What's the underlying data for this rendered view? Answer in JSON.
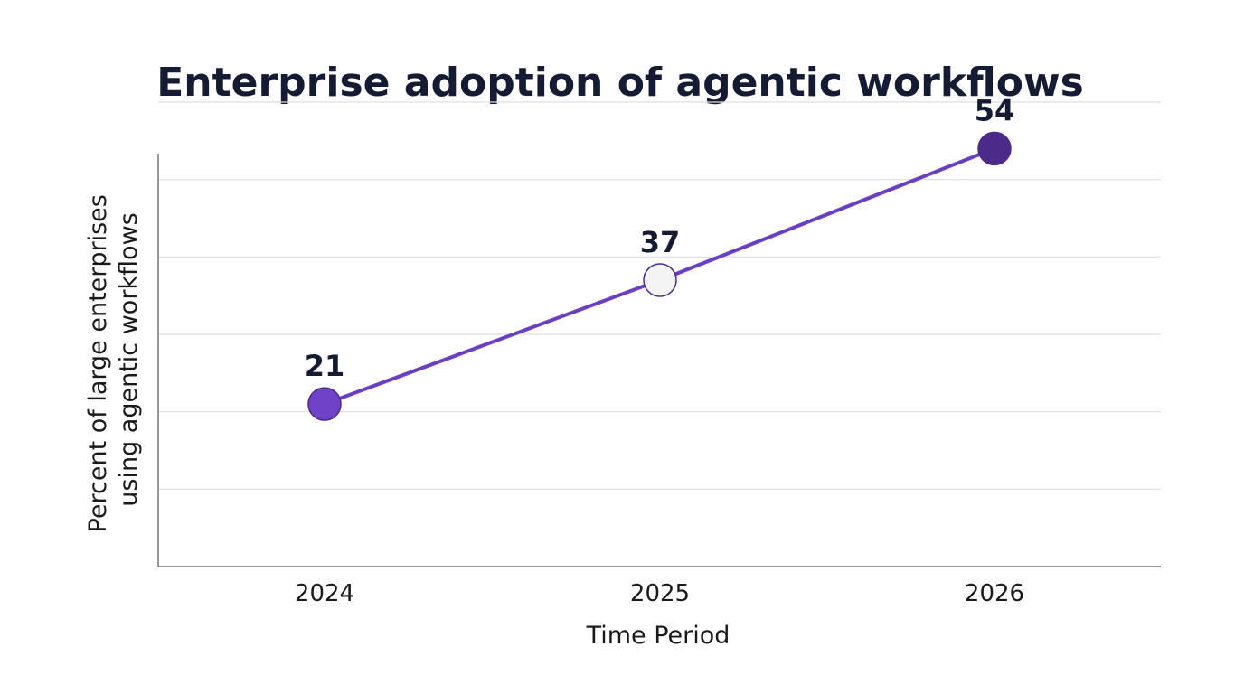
{
  "chart_data": {
    "type": "line",
    "title": "Enterprise adoption of agentic workflows",
    "xlabel": "Time Period",
    "ylabel_lines": [
      "Percent of large enterprises",
      "using agentic workflows"
    ],
    "categories": [
      "2024",
      "2025",
      "2026"
    ],
    "series": [
      {
        "values": [
          21,
          37,
          54
        ],
        "point_colors": [
          "#6f42c8",
          "#f4f4f4",
          "#4b2a8a"
        ],
        "line_color": "#6a3fc4"
      }
    ],
    "ylim": [
      0,
      60
    ],
    "grid": true,
    "y_tick_labels_visible": false,
    "colors": {
      "line": "#6a3fc4",
      "point_stroke": "#4b2a8a",
      "title": "#141b33"
    }
  }
}
